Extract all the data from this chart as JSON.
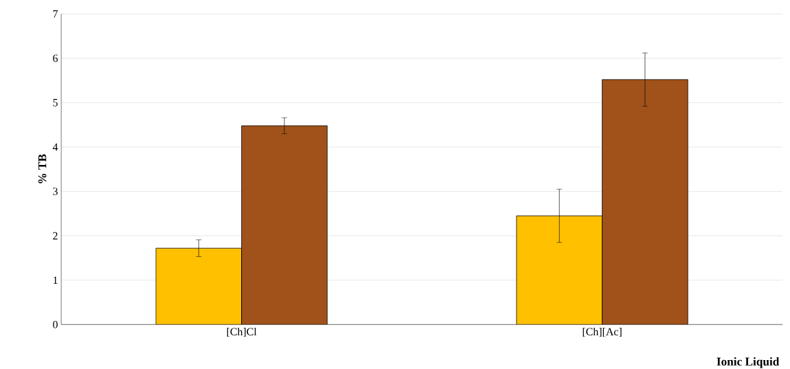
{
  "chart_data": {
    "type": "bar",
    "xlabel": "Ionic Liquid",
    "ylabel": "% TB",
    "categories": [
      "[Ch]Cl",
      "[Ch][Ac]"
    ],
    "series": [
      {
        "color": "#ffc000",
        "values": [
          1.72,
          2.45
        ],
        "errors": [
          0.19,
          0.6
        ]
      },
      {
        "color": "#a0521a",
        "values": [
          4.48,
          5.52
        ],
        "errors": [
          0.18,
          0.6
        ]
      }
    ],
    "ylim": [
      0,
      7
    ],
    "yticks": [
      0,
      1,
      2,
      3,
      4,
      5,
      6,
      7
    ],
    "grid": "y"
  }
}
